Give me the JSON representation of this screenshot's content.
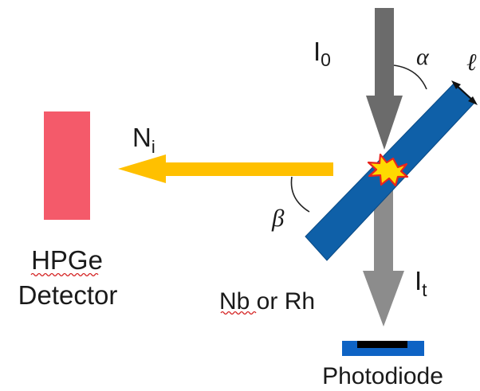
{
  "labels": {
    "incident_beam_main": "I",
    "incident_beam_sub": "0",
    "transmitted_beam_main": "I",
    "transmitted_beam_sub": "t",
    "emission_main": "N",
    "emission_sub": "i",
    "angle_incidence": "α",
    "angle_emission": "β",
    "thickness": "ℓ",
    "detector_line1": "HPGe",
    "detector_line2": "Detector",
    "sample": "Nb or Rh",
    "photodiode": "Photodiode"
  },
  "colors": {
    "detector": "#f45a6a",
    "sample": "#0f60a8",
    "sample_border": "#0a4a85",
    "emission_arrow": "#ffc000",
    "incident_arrow": "#6b6b6b",
    "transmitted_arrow": "#8c8c8c",
    "photodiode_base": "#0e63c4",
    "photodiode_sensor": "#000000",
    "burst_fill": "#ffd900",
    "burst_outline": "#e8241c",
    "squiggle_underline": "#d42020"
  }
}
